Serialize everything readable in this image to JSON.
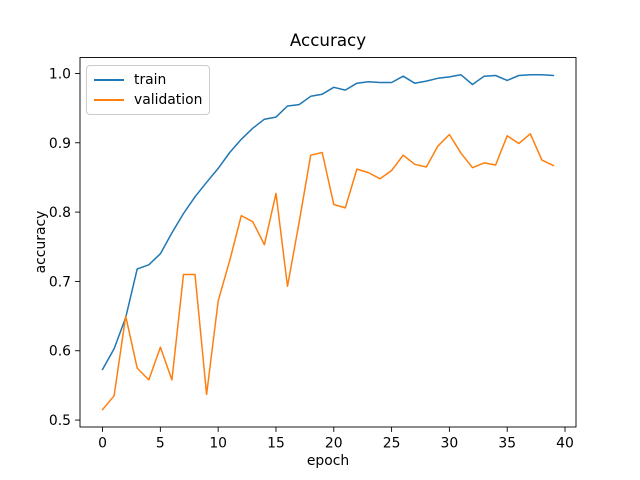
{
  "figure": {
    "title": "Accuracy"
  },
  "chart_data": {
    "type": "line",
    "title": "Accuracy",
    "xlabel": "epoch",
    "ylabel": "accuracy",
    "x": [
      0,
      1,
      2,
      3,
      4,
      5,
      6,
      7,
      8,
      9,
      10,
      11,
      12,
      13,
      14,
      15,
      16,
      17,
      18,
      19,
      20,
      21,
      22,
      23,
      24,
      25,
      26,
      27,
      28,
      29,
      30,
      31,
      32,
      33,
      34,
      35,
      36,
      37,
      38,
      39
    ],
    "series": [
      {
        "name": "train",
        "color": "#1f77b4",
        "values": [
          0.573,
          0.603,
          0.648,
          0.718,
          0.724,
          0.74,
          0.77,
          0.798,
          0.822,
          0.843,
          0.863,
          0.886,
          0.905,
          0.921,
          0.934,
          0.937,
          0.953,
          0.955,
          0.967,
          0.97,
          0.98,
          0.976,
          0.986,
          0.988,
          0.987,
          0.987,
          0.996,
          0.986,
          0.989,
          0.993,
          0.995,
          0.998,
          0.984,
          0.996,
          0.997,
          0.99,
          0.997,
          0.998,
          0.998,
          0.997
        ]
      },
      {
        "name": "validation",
        "color": "#ff7f0e",
        "values": [
          0.515,
          0.535,
          0.65,
          0.575,
          0.558,
          0.605,
          0.558,
          0.71,
          0.71,
          0.537,
          0.672,
          0.73,
          0.795,
          0.786,
          0.753,
          0.827,
          0.693,
          0.785,
          0.882,
          0.886,
          0.811,
          0.806,
          0.862,
          0.857,
          0.848,
          0.86,
          0.882,
          0.869,
          0.865,
          0.895,
          0.912,
          0.885,
          0.864,
          0.871,
          0.868,
          0.91,
          0.899,
          0.913,
          0.875,
          0.867
        ]
      }
    ],
    "xticks": [
      0,
      5,
      10,
      15,
      20,
      25,
      30,
      35,
      40
    ],
    "yticks": [
      0.5,
      0.6,
      0.7,
      0.8,
      0.9,
      1.0
    ],
    "xlim": [
      -1.95,
      40.95
    ],
    "ylim": [
      0.49,
      1.023
    ],
    "grid": false,
    "legend_position": "upper left"
  }
}
